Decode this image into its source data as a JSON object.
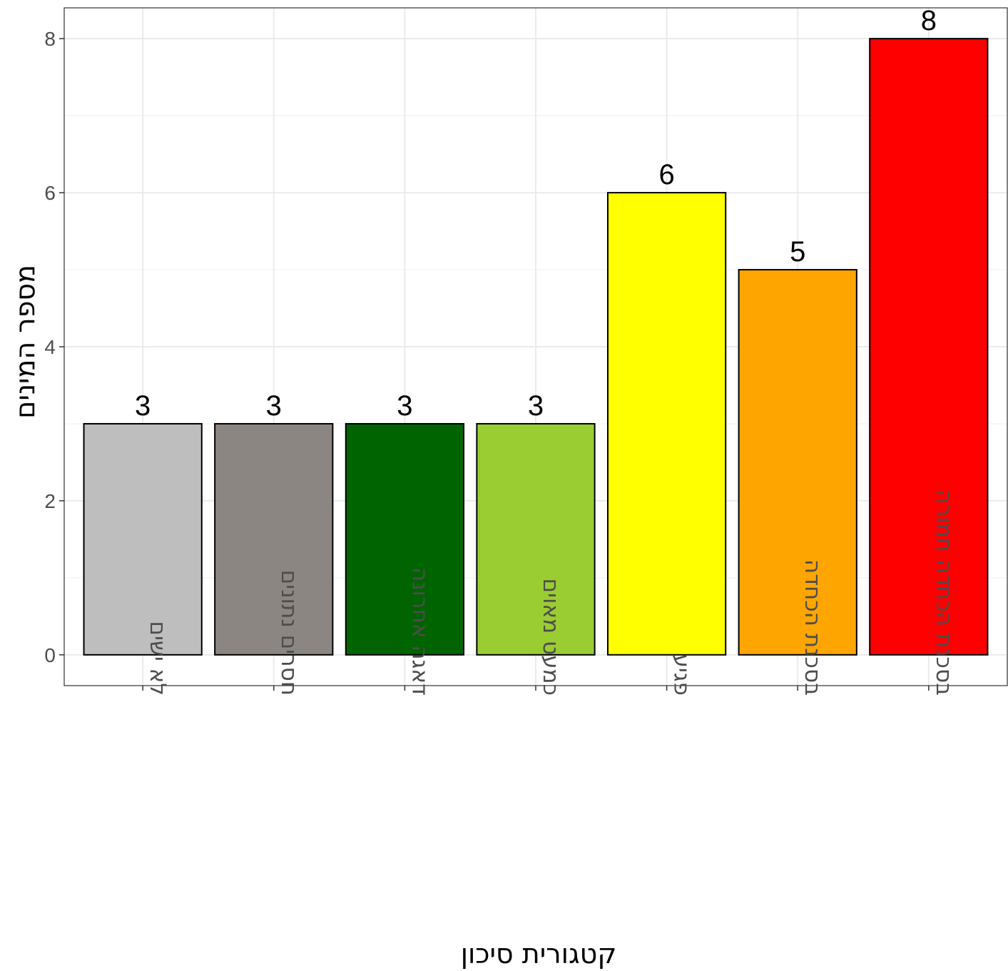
{
  "chart_data": {
    "type": "bar",
    "categories": [
      "לא ישים",
      "חסרים נתונים",
      "דאגה אחרונה",
      "כמעט מאוים",
      "פגיע",
      "בסכנת הכחדה",
      "בסכנת הכחדה חמורה"
    ],
    "values": [
      3,
      3,
      3,
      3,
      6,
      5,
      8
    ],
    "colors": [
      "#bebebe",
      "#8b8682",
      "#006400",
      "#9acd32",
      "#ffff00",
      "#ffa500",
      "#ff0000"
    ],
    "xlabel": "קטגורית סיכון",
    "ylabel": "מספר המינים",
    "ylim": [
      -0.4,
      8.4
    ],
    "yticks": [
      0,
      2,
      4,
      6,
      8
    ],
    "grid": true,
    "data_labels": true
  }
}
